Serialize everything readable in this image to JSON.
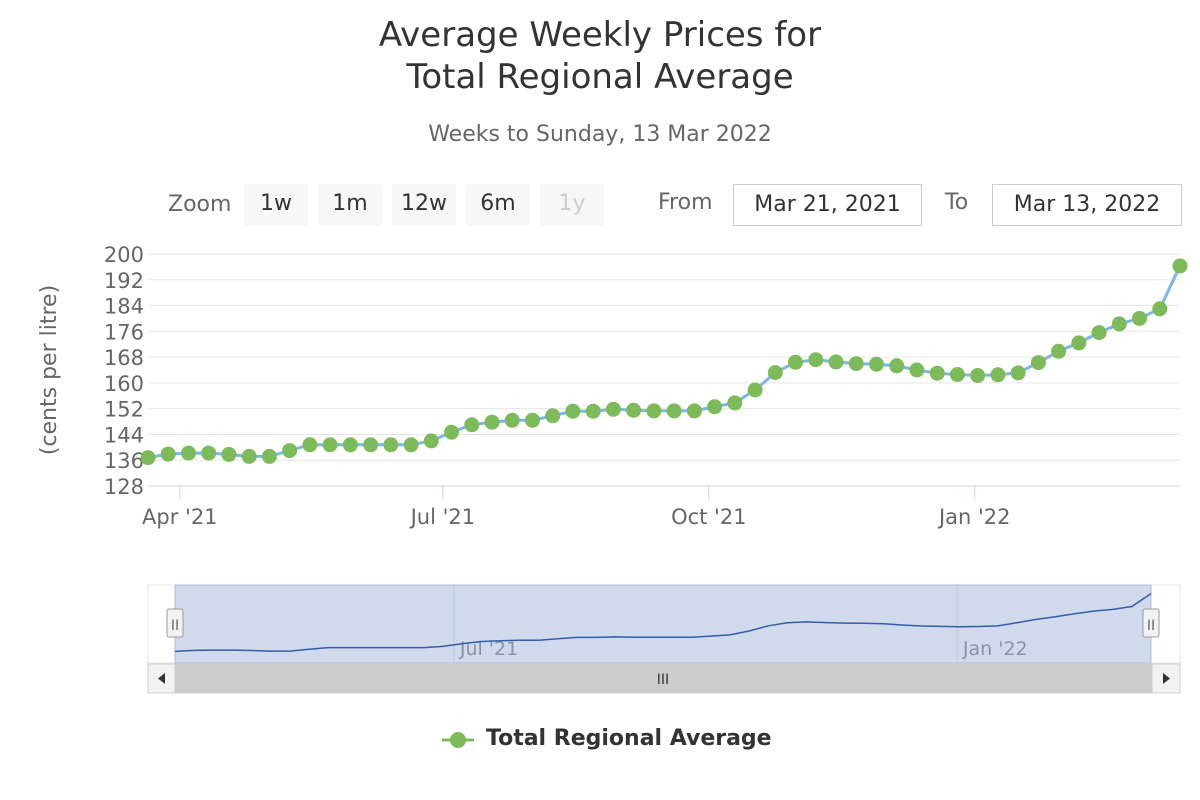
{
  "header": {
    "title_line1": "Average Weekly Prices for",
    "title_line2": "Total Regional Average",
    "subtitle": "Weeks to Sunday, 13 Mar 2022"
  },
  "range_selector": {
    "zoom_label": "Zoom",
    "buttons": [
      {
        "label": "1w",
        "enabled": true
      },
      {
        "label": "1m",
        "enabled": true
      },
      {
        "label": "12w",
        "enabled": true
      },
      {
        "label": "6m",
        "enabled": true
      },
      {
        "label": "1y",
        "enabled": false
      }
    ],
    "from_label": "From",
    "from_value": "Mar 21, 2021",
    "to_label": "To",
    "to_value": "Mar 13, 2022"
  },
  "navigator": {
    "scrollbar_grip": "III",
    "left_handle": "II",
    "right_handle": "II"
  },
  "colors": {
    "line": "#7cb5ec",
    "marker": "#7dbb5a",
    "navigator_line": "#335cad",
    "navigator_mask": "#ccd6eb"
  },
  "chart_data": {
    "type": "line",
    "title": "Average Weekly Prices for Total Regional Average",
    "subtitle": "Weeks to Sunday, 13 Mar 2022",
    "ylabel": "(cents per litre)",
    "ylim": [
      128,
      200
    ],
    "yticks": [
      128,
      136,
      144,
      152,
      160,
      168,
      176,
      184,
      192,
      200
    ],
    "xlim": [
      "2021-03-21",
      "2022-03-13"
    ],
    "xticks": [
      {
        "date": "2021-04-01",
        "label": "Apr '21"
      },
      {
        "date": "2021-07-01",
        "label": "Jul '21"
      },
      {
        "date": "2021-10-01",
        "label": "Oct '21"
      },
      {
        "date": "2022-01-01",
        "label": "Jan '22"
      }
    ],
    "navigator_labels": [
      {
        "date": "2021-07-01",
        "label": "Jul '21"
      },
      {
        "date": "2022-01-01",
        "label": "Jan '22"
      }
    ],
    "legend": "bottom-center",
    "grid": true,
    "series": [
      {
        "name": "Total Regional Average",
        "x": [
          "2021-03-21",
          "2021-03-28",
          "2021-04-04",
          "2021-04-11",
          "2021-04-18",
          "2021-04-25",
          "2021-05-02",
          "2021-05-09",
          "2021-05-16",
          "2021-05-23",
          "2021-05-30",
          "2021-06-06",
          "2021-06-13",
          "2021-06-20",
          "2021-06-27",
          "2021-07-04",
          "2021-07-11",
          "2021-07-18",
          "2021-07-25",
          "2021-08-01",
          "2021-08-08",
          "2021-08-15",
          "2021-08-22",
          "2021-08-29",
          "2021-09-05",
          "2021-09-12",
          "2021-09-19",
          "2021-09-26",
          "2021-10-03",
          "2021-10-10",
          "2021-10-17",
          "2021-10-24",
          "2021-10-31",
          "2021-11-07",
          "2021-11-14",
          "2021-11-21",
          "2021-11-28",
          "2021-12-05",
          "2021-12-12",
          "2021-12-19",
          "2021-12-26",
          "2022-01-02",
          "2022-01-09",
          "2022-01-16",
          "2022-01-23",
          "2022-01-30",
          "2022-02-06",
          "2022-02-13",
          "2022-02-20",
          "2022-02-27",
          "2022-03-06",
          "2022-03-13"
        ],
        "values": [
          136.8,
          137.9,
          138.2,
          138.2,
          137.8,
          137.2,
          137.2,
          139.0,
          140.8,
          140.8,
          140.8,
          140.8,
          140.8,
          140.8,
          142.0,
          144.7,
          147.0,
          147.8,
          148.4,
          148.4,
          149.8,
          151.2,
          151.2,
          151.8,
          151.5,
          151.3,
          151.3,
          151.3,
          152.6,
          153.8,
          157.8,
          163.2,
          166.4,
          167.2,
          166.5,
          166.0,
          165.8,
          165.3,
          164.0,
          163.0,
          162.6,
          162.3,
          162.5,
          163.1,
          166.3,
          169.8,
          172.4,
          175.6,
          178.3,
          180.0,
          183.0,
          196.3
        ]
      }
    ]
  }
}
